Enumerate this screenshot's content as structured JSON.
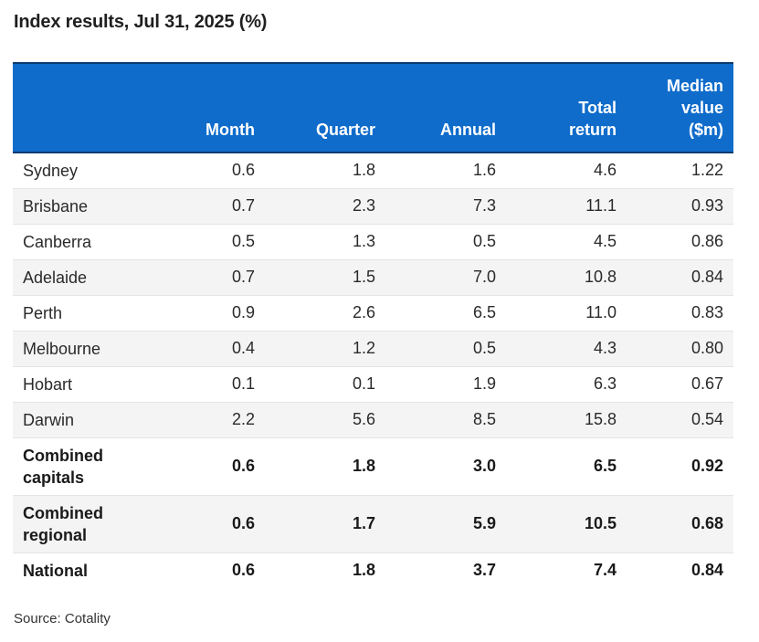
{
  "title": "Index results, Jul 31, 2025 (%)",
  "source": "Source: Cotality",
  "colors": {
    "header_background": "#0f6ccb",
    "header_text": "#ffffff",
    "row_stripe": "#f4f4f4"
  },
  "chart_data": {
    "type": "table",
    "title": "Index results, Jul 31, 2025 (%)",
    "columns": [
      "",
      "Month",
      "Quarter",
      "Annual",
      "Total return",
      "Median value ($m)"
    ],
    "header_lines": {
      "month": [
        "Month"
      ],
      "quarter": [
        "Quarter"
      ],
      "annual": [
        "Annual"
      ],
      "total": [
        "Total",
        "return"
      ],
      "median": [
        "Median",
        "value",
        "($m)"
      ]
    },
    "rows": [
      {
        "city": "Sydney",
        "month": "0.6",
        "quarter": "1.8",
        "annual": "1.6",
        "total": "4.6",
        "median": "1.22",
        "bold": false
      },
      {
        "city": "Brisbane",
        "month": "0.7",
        "quarter": "2.3",
        "annual": "7.3",
        "total": "11.1",
        "median": "0.93",
        "bold": false
      },
      {
        "city": "Canberra",
        "month": "0.5",
        "quarter": "1.3",
        "annual": "0.5",
        "total": "4.5",
        "median": "0.86",
        "bold": false
      },
      {
        "city": "Adelaide",
        "month": "0.7",
        "quarter": "1.5",
        "annual": "7.0",
        "total": "10.8",
        "median": "0.84",
        "bold": false
      },
      {
        "city": "Perth",
        "month": "0.9",
        "quarter": "2.6",
        "annual": "6.5",
        "total": "11.0",
        "median": "0.83",
        "bold": false
      },
      {
        "city": "Melbourne",
        "month": "0.4",
        "quarter": "1.2",
        "annual": "0.5",
        "total": "4.3",
        "median": "0.80",
        "bold": false
      },
      {
        "city": "Hobart",
        "month": "0.1",
        "quarter": "0.1",
        "annual": "1.9",
        "total": "6.3",
        "median": "0.67",
        "bold": false
      },
      {
        "city": "Darwin",
        "month": "2.2",
        "quarter": "5.6",
        "annual": "8.5",
        "total": "15.8",
        "median": "0.54",
        "bold": false
      },
      {
        "city": [
          "Combined",
          "capitals"
        ],
        "month": "0.6",
        "quarter": "1.8",
        "annual": "3.0",
        "total": "6.5",
        "median": "0.92",
        "bold": true
      },
      {
        "city": [
          "Combined",
          "regional"
        ],
        "month": "0.6",
        "quarter": "1.7",
        "annual": "5.9",
        "total": "10.5",
        "median": "0.68",
        "bold": true
      },
      {
        "city": "National",
        "month": "0.6",
        "quarter": "1.8",
        "annual": "3.7",
        "total": "7.4",
        "median": "0.84",
        "bold": true
      }
    ]
  }
}
